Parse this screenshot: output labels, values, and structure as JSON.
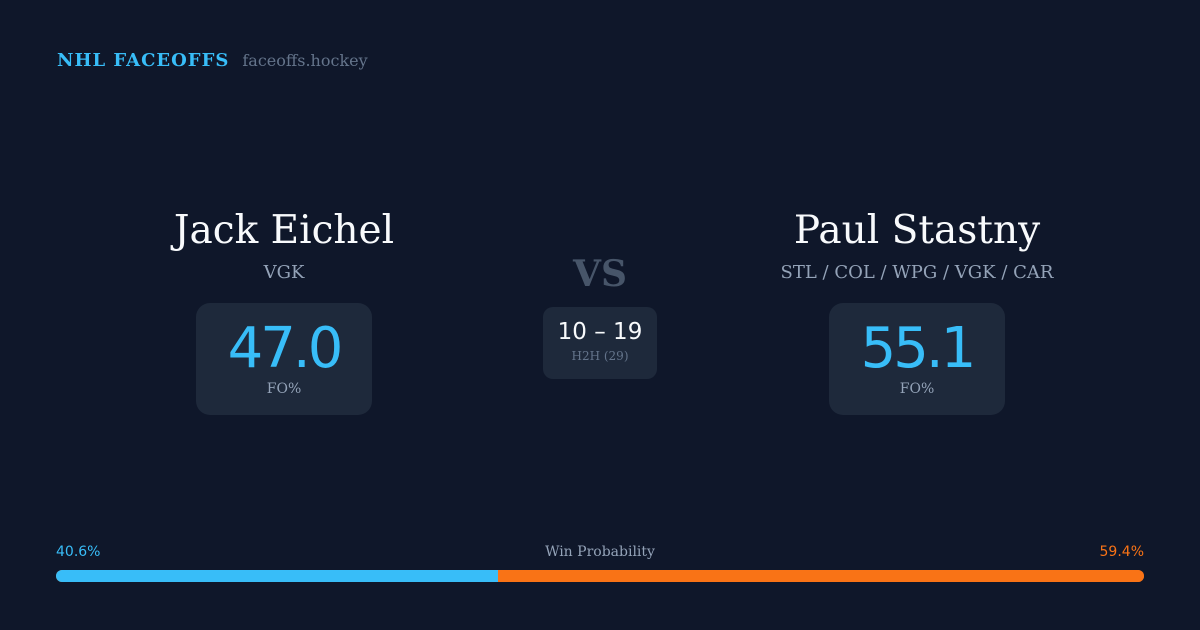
{
  "brand": {
    "title": "NHL FACEOFFS",
    "site": "faceoffs.hockey"
  },
  "player1": {
    "name": "Jack Eichel",
    "team": "VGK",
    "fo_pct": "47.0",
    "fo_label": "FO%"
  },
  "player2": {
    "name": "Paul Stastny",
    "team": "STL / COL / WPG / VGK / CAR",
    "fo_pct": "55.1",
    "fo_label": "FO%"
  },
  "vs": "VS",
  "h2h": {
    "score": "10 – 19",
    "label": "H2H (29)"
  },
  "win_probability": {
    "label": "Win Probability",
    "left_text": "40.6%",
    "right_text": "59.4%",
    "left": 40.6,
    "right": 59.4
  },
  "colors": {
    "accent_left": "#38bdf8",
    "accent_right": "#f97316",
    "background": "#0f172a"
  }
}
